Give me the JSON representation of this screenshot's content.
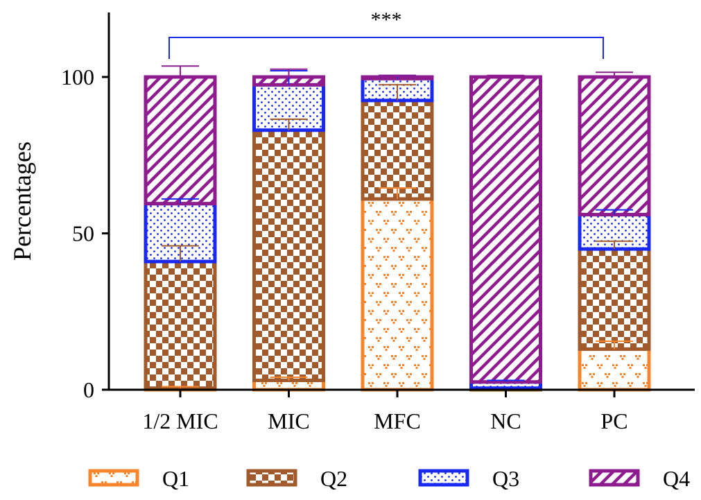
{
  "chart_data": {
    "type": "bar",
    "stacked": true,
    "title": "",
    "xlabel": "",
    "ylabel": "Percentages",
    "ylim": [
      0,
      120
    ],
    "yticks": [
      0,
      50,
      100
    ],
    "categories": [
      "1/2 MIC",
      "MIC",
      "MFC",
      "NC",
      "PC"
    ],
    "series": [
      {
        "name": "Q1",
        "color": "#F7852D",
        "pattern": "hearts",
        "values": [
          0.5,
          3,
          61,
          0,
          13
        ],
        "errors": [
          0.5,
          1,
          3.5,
          0,
          2.5
        ]
      },
      {
        "name": "Q2",
        "color": "#A05A2C",
        "pattern": "checker",
        "values": [
          40.5,
          80,
          31.5,
          0.5,
          32
        ],
        "errors": [
          5,
          3.5,
          5,
          0,
          2.5
        ]
      },
      {
        "name": "Q3",
        "color": "#1A29F0",
        "pattern": "dots",
        "values": [
          18.5,
          14.5,
          7,
          2,
          11
        ],
        "errors": [
          1.5,
          4.5,
          1,
          0.5,
          1.5
        ]
      },
      {
        "name": "Q4",
        "color": "#8E1C8E",
        "pattern": "hatch",
        "values": [
          40.5,
          2.5,
          0.5,
          97.5,
          44
        ],
        "errors": [
          3.5,
          2.5,
          0.5,
          0.5,
          1.5
        ]
      }
    ],
    "significance": {
      "label": "***",
      "from": "1/2 MIC",
      "to": "PC",
      "color": "#1A29F0"
    },
    "legend_position": "bottom"
  }
}
